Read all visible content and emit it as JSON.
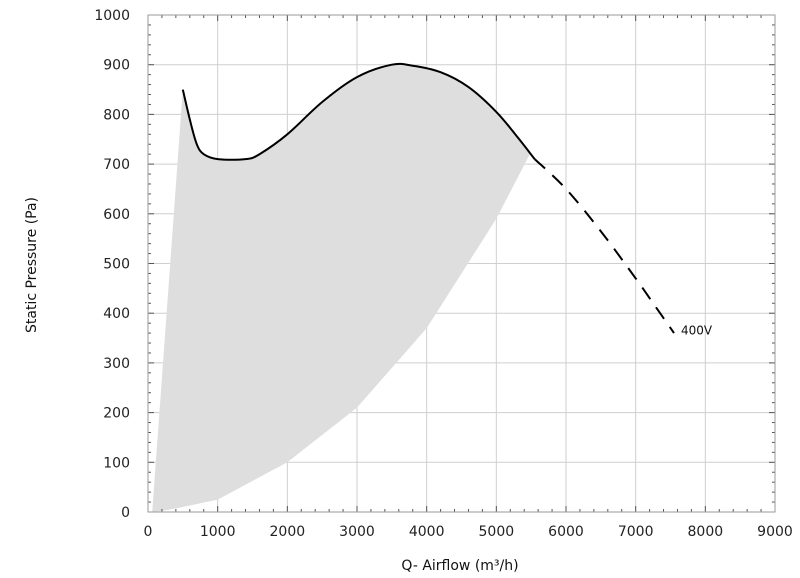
{
  "chart_data": {
    "type": "line",
    "title": "",
    "xlabel": "Q- Airflow (m³/h)",
    "ylabel": "Static Pressure (Pa)",
    "xlim": [
      0,
      9000
    ],
    "ylim": [
      0,
      1000
    ],
    "xticks": [
      "0",
      "1000",
      "2000",
      "3000",
      "4000",
      "5000",
      "6000",
      "7000",
      "8000",
      "9000"
    ],
    "yticks": [
      "0",
      "100",
      "200",
      "300",
      "400",
      "500",
      "600",
      "700",
      "800",
      "900",
      "1000"
    ],
    "grid": true,
    "annotations": [
      {
        "text": "400V",
        "x": 7650,
        "y": 365
      }
    ],
    "series": [
      {
        "name": "400V",
        "style": "solid",
        "color": "#000000",
        "points": [
          [
            500,
            850
          ],
          [
            600,
            790
          ],
          [
            700,
            740
          ],
          [
            800,
            720
          ],
          [
            1000,
            710
          ],
          [
            1400,
            710
          ],
          [
            1600,
            720
          ],
          [
            2000,
            760
          ],
          [
            2500,
            825
          ],
          [
            3000,
            875
          ],
          [
            3500,
            900
          ],
          [
            3800,
            898
          ],
          [
            4200,
            885
          ],
          [
            4600,
            855
          ],
          [
            5000,
            805
          ],
          [
            5300,
            755
          ],
          [
            5550,
            710
          ]
        ]
      },
      {
        "name": "400V",
        "style": "dashed",
        "color": "#000000",
        "points": [
          [
            5550,
            710
          ],
          [
            6000,
            650
          ],
          [
            6500,
            565
          ],
          [
            7000,
            470
          ],
          [
            7300,
            410
          ],
          [
            7550,
            360
          ]
        ]
      }
    ],
    "operating_area": {
      "fill": "#dedede",
      "boundary": [
        [
          60,
          0
        ],
        [
          500,
          850
        ],
        [
          600,
          790
        ],
        [
          700,
          740
        ],
        [
          800,
          720
        ],
        [
          1000,
          710
        ],
        [
          1400,
          710
        ],
        [
          1600,
          720
        ],
        [
          2000,
          760
        ],
        [
          2500,
          825
        ],
        [
          3000,
          875
        ],
        [
          3500,
          900
        ],
        [
          3800,
          898
        ],
        [
          4200,
          885
        ],
        [
          4600,
          855
        ],
        [
          5000,
          805
        ],
        [
          5300,
          755
        ],
        [
          5480,
          720
        ],
        [
          5000,
          590
        ],
        [
          4000,
          370
        ],
        [
          3000,
          210
        ],
        [
          2000,
          100
        ],
        [
          1000,
          25
        ],
        [
          500,
          10
        ],
        [
          200,
          2
        ],
        [
          60,
          0
        ]
      ]
    }
  }
}
